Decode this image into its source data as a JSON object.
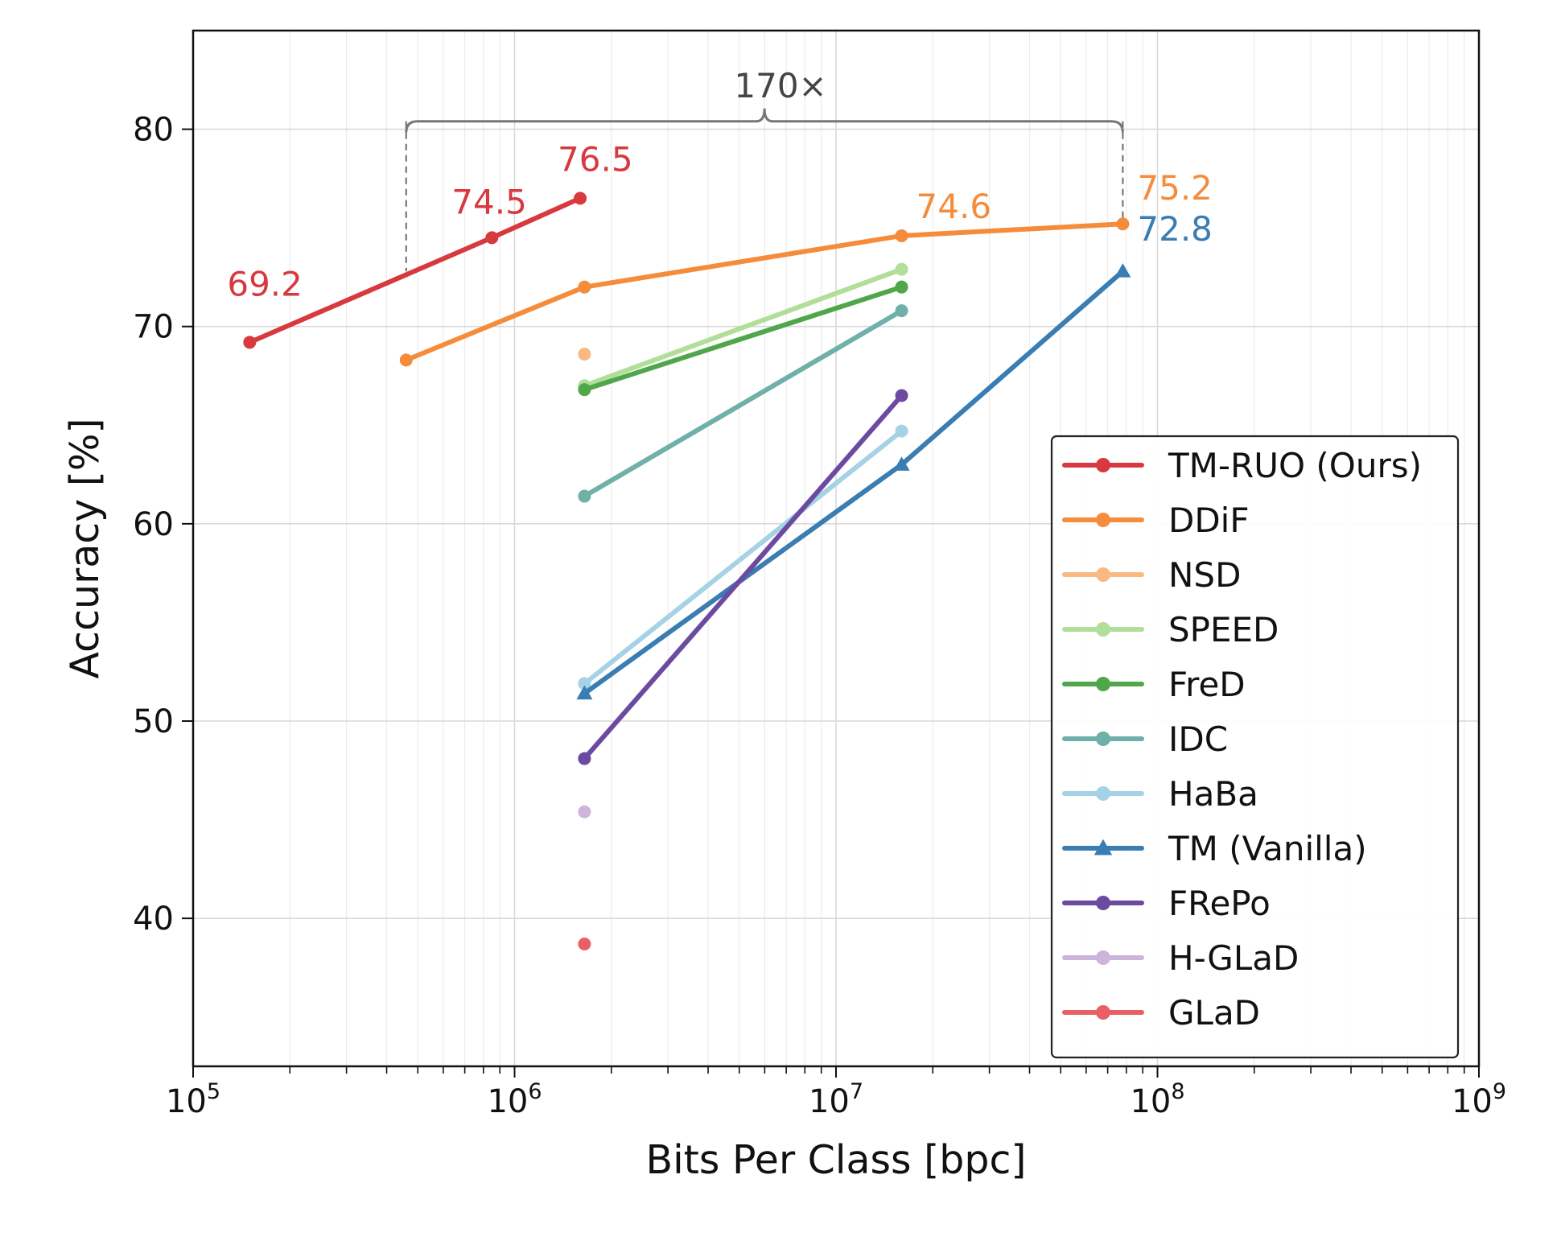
{
  "chart_data": {
    "type": "line",
    "xlabel": "Bits Per Class [bpc]",
    "ylabel": "Accuracy [%]",
    "xscale": "log",
    "xlim": [
      100000,
      1000000000
    ],
    "ylim": [
      32.5,
      85
    ],
    "x_ticks": [
      {
        "base": "10",
        "exp": "5",
        "value": 100000
      },
      {
        "base": "10",
        "exp": "6",
        "value": 1000000
      },
      {
        "base": "10",
        "exp": "7",
        "value": 10000000
      },
      {
        "base": "10",
        "exp": "8",
        "value": 100000000
      },
      {
        "base": "10",
        "exp": "9",
        "value": 1000000000
      }
    ],
    "y_ticks": [
      {
        "label": "40",
        "value": 40
      },
      {
        "label": "50",
        "value": 50
      },
      {
        "label": "60",
        "value": 60
      },
      {
        "label": "70",
        "value": 70
      },
      {
        "label": "80",
        "value": 80
      }
    ],
    "grid": true,
    "legend_position": "lower-right",
    "series": [
      {
        "name": "TM-RUO (Ours)",
        "color": "#d7393e",
        "marker": "circle",
        "width": 6,
        "x": [
          150000,
          850000,
          1600000
        ],
        "y": [
          69.2,
          74.5,
          76.5
        ]
      },
      {
        "name": "DDiF",
        "color": "#f58c3c",
        "marker": "circle",
        "width": 6,
        "x": [
          460000,
          1650000,
          16000000,
          78000000
        ],
        "y": [
          68.3,
          72.0,
          74.6,
          75.2
        ]
      },
      {
        "name": "NSD",
        "color": "#fab882",
        "marker": "circle",
        "width": 6,
        "x": [
          1650000
        ],
        "y": [
          68.6
        ]
      },
      {
        "name": "SPEED",
        "color": "#b1de98",
        "marker": "circle",
        "width": 6,
        "x": [
          1650000,
          16000000
        ],
        "y": [
          67.0,
          72.9
        ]
      },
      {
        "name": "FreD",
        "color": "#50a64a",
        "marker": "circle",
        "width": 6,
        "x": [
          1650000,
          16000000
        ],
        "y": [
          66.8,
          72.0
        ]
      },
      {
        "name": "IDC",
        "color": "#6fb0a8",
        "marker": "circle",
        "width": 6,
        "x": [
          1650000,
          16000000
        ],
        "y": [
          61.4,
          70.8
        ]
      },
      {
        "name": "HaBa",
        "color": "#a6d2e8",
        "marker": "circle",
        "width": 6,
        "x": [
          1650000,
          16000000
        ],
        "y": [
          51.9,
          64.7
        ]
      },
      {
        "name": "TM (Vanilla)",
        "color": "#3a7db2",
        "marker": "triangle",
        "width": 6,
        "x": [
          1650000,
          16000000,
          78000000
        ],
        "y": [
          51.4,
          63.0,
          72.8
        ]
      },
      {
        "name": "FRePo",
        "color": "#6c4aa0",
        "marker": "circle",
        "width": 6,
        "x": [
          1650000,
          16000000
        ],
        "y": [
          48.1,
          66.5
        ]
      },
      {
        "name": "H-GLaD",
        "color": "#cdb4da",
        "marker": "circle",
        "width": 6,
        "x": [
          1650000
        ],
        "y": [
          45.4
        ]
      },
      {
        "name": "GLaD",
        "color": "#ea5f66",
        "marker": "circle",
        "width": 6,
        "x": [
          1650000
        ],
        "y": [
          38.7
        ]
      }
    ],
    "annotations": [
      {
        "text": "69.2",
        "x": 150000,
        "y": 69.2,
        "color": "#d7393e",
        "anchor": "start-above",
        "dx": -28,
        "dy": -58
      },
      {
        "text": "74.5",
        "x": 850000,
        "y": 74.5,
        "color": "#d7393e",
        "anchor": "start-above",
        "dx": -50,
        "dy": -30
      },
      {
        "text": "76.5",
        "x": 1600000,
        "y": 76.5,
        "color": "#d7393e",
        "anchor": "start-above",
        "dx": -28,
        "dy": -34
      },
      {
        "text": "74.6",
        "x": 16000000,
        "y": 74.6,
        "color": "#f58c3c",
        "anchor": "start-above",
        "dx": 18,
        "dy": -22
      },
      {
        "text": "75.2",
        "x": 78000000,
        "y": 75.2,
        "color": "#f58c3c",
        "anchor": "start-above",
        "dx": 18,
        "dy": -30
      },
      {
        "text": "72.8",
        "x": 78000000,
        "y": 72.8,
        "color": "#3a7db2",
        "anchor": "start-above",
        "dx": 18,
        "dy": -38
      }
    ],
    "bracket": {
      "label": "170×",
      "x_left": 460000,
      "x_right": 78000000,
      "y_top": 80.4,
      "y_left_bottom": 72.8,
      "y_right_bottom": 75.2,
      "color": "#777777"
    }
  }
}
